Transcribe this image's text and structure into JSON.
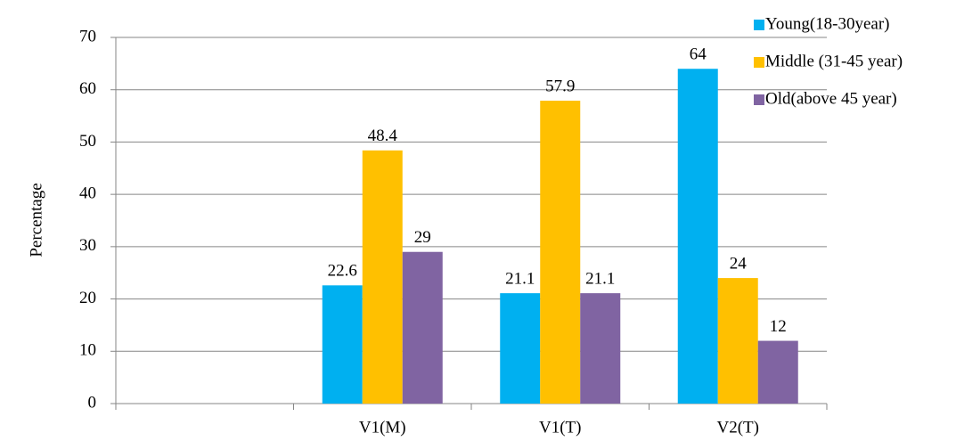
{
  "chart_data": {
    "type": "bar",
    "y_label": "Percentage",
    "categories": [
      null,
      "V1(M)",
      "V1(T)",
      "V2(T)"
    ],
    "series": [
      {
        "name": "Young(18-30year)",
        "color": "#00b0f0",
        "values": [
          null,
          22.6,
          21.1,
          64
        ]
      },
      {
        "name": "Middle (31-45 year)",
        "color": "#ffc000",
        "values": [
          null,
          48.4,
          57.9,
          24
        ]
      },
      {
        "name": "Old(above 45 year)",
        "color": "#8064a2",
        "values": [
          null,
          29,
          21.1,
          12
        ]
      }
    ],
    "ylim": [
      0,
      70
    ],
    "yticks": [
      0,
      10,
      20,
      30,
      40,
      50,
      60,
      70
    ],
    "grid": true,
    "legend": "right",
    "data_labels": true
  }
}
